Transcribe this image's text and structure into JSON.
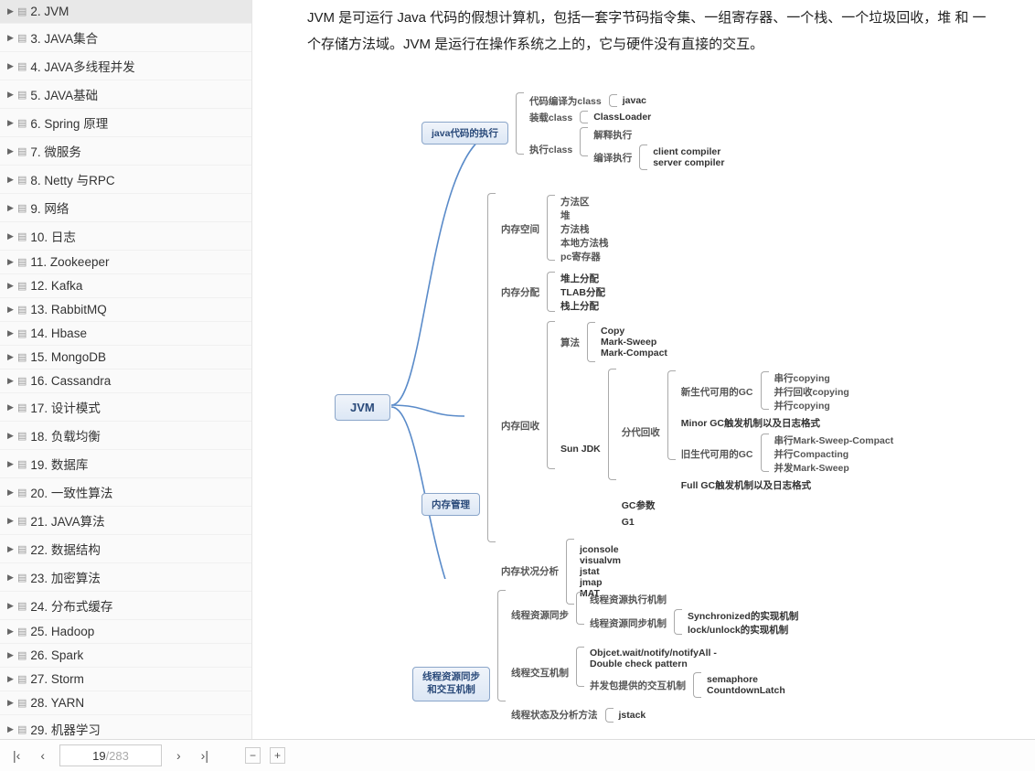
{
  "sidebar": {
    "items": [
      {
        "label": "2. JVM",
        "active": true
      },
      {
        "label": "3. JAVA集合"
      },
      {
        "label": "4. JAVA多线程并发"
      },
      {
        "label": "5. JAVA基础"
      },
      {
        "label": "6. Spring 原理"
      },
      {
        "label": "7.   微服务"
      },
      {
        "label": "8. Netty 与RPC"
      },
      {
        "label": "9. 网络"
      },
      {
        "label": "10. 日志"
      },
      {
        "label": "11. Zookeeper"
      },
      {
        "label": "12. Kafka"
      },
      {
        "label": "13. RabbitMQ"
      },
      {
        "label": "14. Hbase"
      },
      {
        "label": "15. MongoDB"
      },
      {
        "label": "16. Cassandra"
      },
      {
        "label": "17. 设计模式"
      },
      {
        "label": "18. 负载均衡"
      },
      {
        "label": "19. 数据库"
      },
      {
        "label": "20. 一致性算法"
      },
      {
        "label": "21. JAVA算法"
      },
      {
        "label": "22. 数据结构"
      },
      {
        "label": "23. 加密算法"
      },
      {
        "label": "24. 分布式缓存"
      },
      {
        "label": "25. Hadoop"
      },
      {
        "label": "26. Spark"
      },
      {
        "label": "27. Storm"
      },
      {
        "label": "28. YARN"
      },
      {
        "label": "29. 机器学习"
      }
    ]
  },
  "intro": "JVM 是可运行 Java 代码的假想计算机，包括一套字节码指令集、一组寄存器、一个栈、一个垃圾回收，堆 和 一个存储方法域。JVM 是运行在操作系统之上的，它与硬件没有直接的交互。",
  "mm": {
    "root": "JVM",
    "b1": {
      "title": "java代码的执行",
      "r1": {
        "l": "代码编译为class",
        "leaf": "javac"
      },
      "r2": {
        "l": "装载class",
        "leaf": "ClassLoader"
      },
      "r3": {
        "l": "执行class",
        "a": "解释执行",
        "b": "编译执行",
        "b1": "client compiler",
        "b2": "server compiler"
      }
    },
    "b2": {
      "title": "内存管理",
      "s1": {
        "l": "内存空间",
        "items": [
          "方法区",
          "堆",
          "方法栈",
          "本地方法栈",
          "pc寄存器"
        ]
      },
      "s2": {
        "l": "内存分配",
        "items": [
          "堆上分配",
          "TLAB分配",
          "栈上分配"
        ]
      },
      "s3": {
        "l": "内存回收",
        "alg": {
          "l": "算法",
          "items": [
            "Copy",
            "Mark-Sweep",
            "Mark-Compact"
          ]
        },
        "sun": {
          "l": "Sun JDK",
          "gen": {
            "l": "分代回收",
            "new": {
              "l": "新生代可用的GC",
              "items": [
                "串行copying",
                "并行回收copying",
                "并行copying"
              ]
            },
            "minor": "Minor GC触发机制以及日志格式",
            "old": {
              "l": "旧生代可用的GC",
              "items": [
                "串行Mark-Sweep-Compact",
                "并行Compacting",
                "并发Mark-Sweep"
              ]
            },
            "full": "Full GC触发机制以及日志格式"
          },
          "gcparam": "GC参数",
          "g1": "G1"
        }
      },
      "s4": {
        "l": "内存状况分析",
        "items": [
          "jconsole",
          "visualvm",
          "jstat",
          "jmap",
          "MAT"
        ]
      }
    },
    "b3": {
      "title": "线程资源同步和交互机制",
      "s1": {
        "l": "线程资源同步",
        "a": "线程资源执行机制",
        "b": "线程资源同步机制",
        "b1": "Synchronized的实现机制",
        "b2": "lock/unlock的实现机制"
      },
      "s2": {
        "l": "线程交互机制",
        "a": "Objcet.wait/notify/notifyAll - Double check pattern",
        "b": "并发包提供的交互机制",
        "b1": "semaphore",
        "b2": "CountdownLatch"
      },
      "s3": {
        "l": "线程状态及分析方法",
        "a": "jstack"
      }
    }
  },
  "footer": {
    "current": "19",
    "total": "/283"
  },
  "colors": {
    "arrow": "#ff2a2a",
    "curve": "#5a8bc9",
    "node_border": "#8aa5c9"
  }
}
